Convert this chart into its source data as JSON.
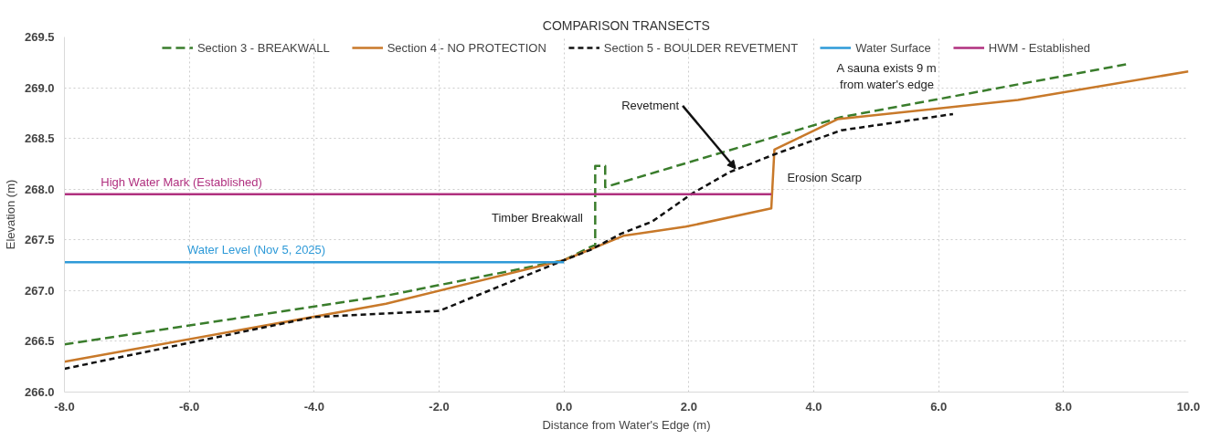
{
  "chart_data": {
    "type": "line",
    "title": "COMPARISON TRANSECTS",
    "xlabel": "Distance from Water's Edge (m)",
    "ylabel": "Elevation (m)",
    "series": [
      {
        "name": "Section 3 - BREAKWALL",
        "color": "#3a7d2c",
        "line_style": "dashed",
        "x": [
          -8,
          -2.85,
          0,
          0.42,
          0.5,
          0.5,
          0.66,
          0.66,
          4.44,
          9.0
        ],
        "values": [
          266.47,
          266.95,
          267.3,
          267.43,
          267.45,
          268.23,
          268.23,
          268.02,
          268.71,
          269.23
        ]
      },
      {
        "name": "Section 4 - NO PROTECTION",
        "color": "#c8792a",
        "line_style": "solid",
        "x": [
          -8,
          -2.85,
          0,
          0.95,
          1.95,
          3.32,
          3.37,
          4.38,
          7.27,
          10.0
        ],
        "values": [
          266.3,
          266.87,
          267.3,
          267.54,
          267.63,
          267.81,
          268.39,
          268.69,
          268.88,
          269.16
        ]
      },
      {
        "name": "Section 5 - BOULDER REVETMENT",
        "color": "#111111",
        "line_style": "dotted",
        "x": [
          -8,
          -4,
          -2,
          0,
          0.42,
          0.91,
          1.41,
          2.06,
          2.66,
          3.4,
          4.44,
          6.23
        ],
        "values": [
          266.23,
          266.74,
          266.8,
          267.3,
          267.4,
          267.56,
          267.68,
          267.96,
          268.17,
          268.35,
          268.58,
          268.74
        ]
      },
      {
        "name": "Water Surface",
        "color": "#2e9ad8",
        "line_style": "solid",
        "x": [
          -8,
          0
        ],
        "values": [
          267.28,
          267.28
        ]
      },
      {
        "name": "HWM - Established",
        "color": "#b0307f",
        "line_style": "solid",
        "x": [
          -8,
          3.32
        ],
        "values": [
          267.95,
          267.95
        ]
      }
    ],
    "annotations": [
      {
        "text": "High Water Mark  (Established)",
        "x": -6.1,
        "y": 267.95
      },
      {
        "text": "Water Level  (Nov 5, 2025)",
        "x": -4.9,
        "y": 267.28
      },
      {
        "text": "Timber Breakwall",
        "x": 0.45,
        "y": 267.65
      },
      {
        "text": "Revetment",
        "x": 2.75,
        "y": 268.2
      },
      {
        "text": "Erosion Scarp",
        "x": 3.37,
        "y": 268.05
      },
      "A sauna exists 9 m\nfrom water's edge"
    ],
    "xlim": [
      -8,
      10
    ],
    "ylim": [
      266,
      269.5
    ],
    "xticks": [
      {
        "value": -8,
        "label": "-8.0"
      },
      {
        "value": -6,
        "label": "-6.0"
      },
      {
        "value": -4,
        "label": "-4.0"
      },
      {
        "value": -2,
        "label": "-2.0"
      },
      {
        "value": 0,
        "label": "0.0"
      },
      {
        "value": 2,
        "label": "2.0"
      },
      {
        "value": 4,
        "label": "4.0"
      },
      {
        "value": 6,
        "label": "6.0"
      },
      {
        "value": 8,
        "label": "8.0"
      },
      {
        "value": 10,
        "label": "10.0"
      }
    ],
    "yticks": [
      {
        "value": 266,
        "label": "266.0"
      },
      266.5,
      {
        "value": 267,
        "label": "267.0"
      },
      267.5,
      {
        "value": 268,
        "label": "268.0"
      },
      268.5,
      {
        "value": 269,
        "label": "269.0"
      },
      269.5
    ],
    "grid": true,
    "legend": "top"
  }
}
